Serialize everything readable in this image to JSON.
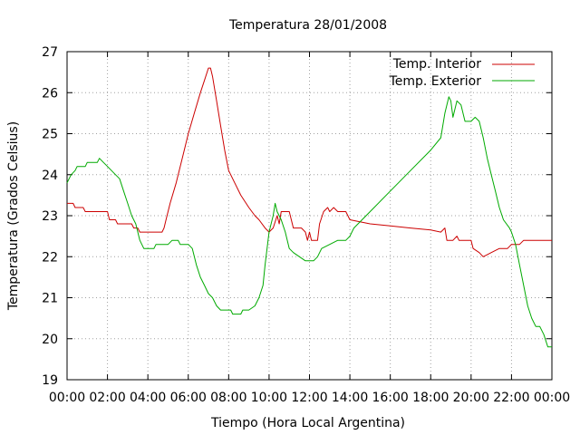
{
  "chart_data": {
    "type": "line",
    "title": "Temperatura 28/01/2008",
    "xlabel": "Tiempo (Hora Local Argentina)",
    "ylabel": "Temperatura (Grados Celsius)",
    "xlim": [
      0,
      24
    ],
    "ylim": [
      19,
      27
    ],
    "x_ticks": [
      0,
      2,
      4,
      6,
      8,
      10,
      12,
      14,
      16,
      18,
      20,
      22,
      24
    ],
    "x_tick_labels": [
      "00:00",
      "02:00",
      "04:00",
      "06:00",
      "08:00",
      "10:00",
      "12:00",
      "14:00",
      "16:00",
      "18:00",
      "20:00",
      "22:00",
      "00:00"
    ],
    "y_ticks": [
      19,
      20,
      21,
      22,
      23,
      24,
      25,
      26,
      27
    ],
    "y_tick_labels": [
      "19",
      "20",
      "21",
      "22",
      "23",
      "24",
      "25",
      "26",
      "27"
    ],
    "grid": true,
    "legend_position": "top-right",
    "series": [
      {
        "name": "Temp. Interior",
        "color": "#cc0000",
        "points": [
          [
            0,
            23.3
          ],
          [
            0.3,
            23.3
          ],
          [
            0.4,
            23.2
          ],
          [
            0.8,
            23.2
          ],
          [
            0.9,
            23.1
          ],
          [
            2.0,
            23.1
          ],
          [
            2.1,
            22.9
          ],
          [
            2.4,
            22.9
          ],
          [
            2.5,
            22.8
          ],
          [
            3.2,
            22.8
          ],
          [
            3.3,
            22.7
          ],
          [
            3.5,
            22.7
          ],
          [
            3.6,
            22.6
          ],
          [
            4.7,
            22.6
          ],
          [
            4.8,
            22.7
          ],
          [
            4.9,
            22.9
          ],
          [
            5.1,
            23.3
          ],
          [
            5.4,
            23.8
          ],
          [
            5.7,
            24.4
          ],
          [
            6.0,
            25.0
          ],
          [
            6.3,
            25.5
          ],
          [
            6.6,
            26.0
          ],
          [
            6.8,
            26.3
          ],
          [
            7.0,
            26.6
          ],
          [
            7.1,
            26.6
          ],
          [
            7.2,
            26.4
          ],
          [
            7.4,
            25.8
          ],
          [
            7.6,
            25.2
          ],
          [
            7.8,
            24.6
          ],
          [
            8.0,
            24.1
          ],
          [
            8.3,
            23.8
          ],
          [
            8.6,
            23.5
          ],
          [
            9.0,
            23.2
          ],
          [
            9.3,
            23.0
          ],
          [
            9.5,
            22.9
          ],
          [
            9.8,
            22.7
          ],
          [
            10.0,
            22.6
          ],
          [
            10.2,
            22.7
          ],
          [
            10.4,
            23.0
          ],
          [
            10.5,
            22.8
          ],
          [
            10.6,
            23.1
          ],
          [
            11.0,
            23.1
          ],
          [
            11.2,
            22.7
          ],
          [
            11.6,
            22.7
          ],
          [
            11.8,
            22.6
          ],
          [
            11.9,
            22.4
          ],
          [
            12.0,
            22.6
          ],
          [
            12.1,
            22.4
          ],
          [
            12.4,
            22.4
          ],
          [
            12.5,
            22.8
          ],
          [
            12.7,
            23.1
          ],
          [
            12.9,
            23.2
          ],
          [
            13.0,
            23.1
          ],
          [
            13.2,
            23.2
          ],
          [
            13.4,
            23.1
          ],
          [
            13.8,
            23.1
          ],
          [
            14.0,
            22.9
          ],
          [
            14.5,
            22.85
          ],
          [
            15.0,
            22.8
          ],
          [
            16.0,
            22.75
          ],
          [
            17.0,
            22.7
          ],
          [
            18.0,
            22.65
          ],
          [
            18.5,
            22.6
          ],
          [
            18.7,
            22.7
          ],
          [
            18.8,
            22.4
          ],
          [
            19.1,
            22.4
          ],
          [
            19.3,
            22.5
          ],
          [
            19.4,
            22.4
          ],
          [
            20.0,
            22.4
          ],
          [
            20.1,
            22.2
          ],
          [
            20.4,
            22.1
          ],
          [
            20.6,
            22.0
          ],
          [
            21.0,
            22.1
          ],
          [
            21.4,
            22.2
          ],
          [
            21.8,
            22.2
          ],
          [
            22.0,
            22.3
          ],
          [
            22.4,
            22.3
          ],
          [
            22.6,
            22.4
          ],
          [
            24.0,
            22.4
          ]
        ]
      },
      {
        "name": "Temp. Exterior",
        "color": "#00aa00",
        "points": [
          [
            0,
            23.8
          ],
          [
            0.1,
            23.9
          ],
          [
            0.2,
            24.0
          ],
          [
            0.4,
            24.1
          ],
          [
            0.5,
            24.2
          ],
          [
            0.9,
            24.2
          ],
          [
            1.0,
            24.3
          ],
          [
            1.5,
            24.3
          ],
          [
            1.6,
            24.4
          ],
          [
            1.8,
            24.3
          ],
          [
            2.0,
            24.2
          ],
          [
            2.2,
            24.1
          ],
          [
            2.4,
            24.0
          ],
          [
            2.6,
            23.9
          ],
          [
            2.8,
            23.6
          ],
          [
            3.0,
            23.3
          ],
          [
            3.2,
            23.0
          ],
          [
            3.4,
            22.8
          ],
          [
            3.6,
            22.4
          ],
          [
            3.8,
            22.2
          ],
          [
            4.3,
            22.2
          ],
          [
            4.4,
            22.3
          ],
          [
            5.0,
            22.3
          ],
          [
            5.2,
            22.4
          ],
          [
            5.5,
            22.4
          ],
          [
            5.6,
            22.3
          ],
          [
            6.0,
            22.3
          ],
          [
            6.2,
            22.2
          ],
          [
            6.4,
            21.8
          ],
          [
            6.6,
            21.5
          ],
          [
            6.8,
            21.3
          ],
          [
            7.0,
            21.1
          ],
          [
            7.2,
            21.0
          ],
          [
            7.4,
            20.8
          ],
          [
            7.6,
            20.7
          ],
          [
            8.1,
            20.7
          ],
          [
            8.2,
            20.6
          ],
          [
            8.6,
            20.6
          ],
          [
            8.7,
            20.7
          ],
          [
            9.0,
            20.7
          ],
          [
            9.3,
            20.8
          ],
          [
            9.5,
            21.0
          ],
          [
            9.7,
            21.3
          ],
          [
            9.8,
            21.8
          ],
          [
            9.9,
            22.2
          ],
          [
            10.0,
            22.6
          ],
          [
            10.2,
            23.0
          ],
          [
            10.3,
            23.3
          ],
          [
            10.4,
            23.1
          ],
          [
            10.6,
            22.9
          ],
          [
            10.8,
            22.6
          ],
          [
            11.0,
            22.2
          ],
          [
            11.2,
            22.1
          ],
          [
            11.5,
            22.0
          ],
          [
            11.8,
            21.9
          ],
          [
            12.2,
            21.9
          ],
          [
            12.4,
            22.0
          ],
          [
            12.6,
            22.2
          ],
          [
            13.0,
            22.3
          ],
          [
            13.4,
            22.4
          ],
          [
            13.8,
            22.4
          ],
          [
            14.0,
            22.5
          ],
          [
            14.2,
            22.7
          ],
          [
            15.0,
            23.1
          ],
          [
            16.0,
            23.6
          ],
          [
            17.0,
            24.1
          ],
          [
            18.0,
            24.6
          ],
          [
            18.5,
            24.9
          ],
          [
            18.7,
            25.5
          ],
          [
            18.9,
            25.9
          ],
          [
            19.0,
            25.8
          ],
          [
            19.1,
            25.4
          ],
          [
            19.3,
            25.8
          ],
          [
            19.5,
            25.7
          ],
          [
            19.7,
            25.3
          ],
          [
            20.0,
            25.3
          ],
          [
            20.2,
            25.4
          ],
          [
            20.4,
            25.3
          ],
          [
            20.6,
            24.9
          ],
          [
            20.8,
            24.4
          ],
          [
            21.0,
            24.0
          ],
          [
            21.2,
            23.6
          ],
          [
            21.4,
            23.2
          ],
          [
            21.6,
            22.9
          ],
          [
            21.9,
            22.7
          ],
          [
            22.0,
            22.6
          ],
          [
            22.2,
            22.3
          ],
          [
            22.4,
            21.8
          ],
          [
            22.6,
            21.3
          ],
          [
            22.8,
            20.8
          ],
          [
            23.0,
            20.5
          ],
          [
            23.2,
            20.3
          ],
          [
            23.4,
            20.3
          ],
          [
            23.6,
            20.1
          ],
          [
            23.8,
            19.8
          ],
          [
            24.0,
            19.8
          ]
        ]
      }
    ]
  }
}
